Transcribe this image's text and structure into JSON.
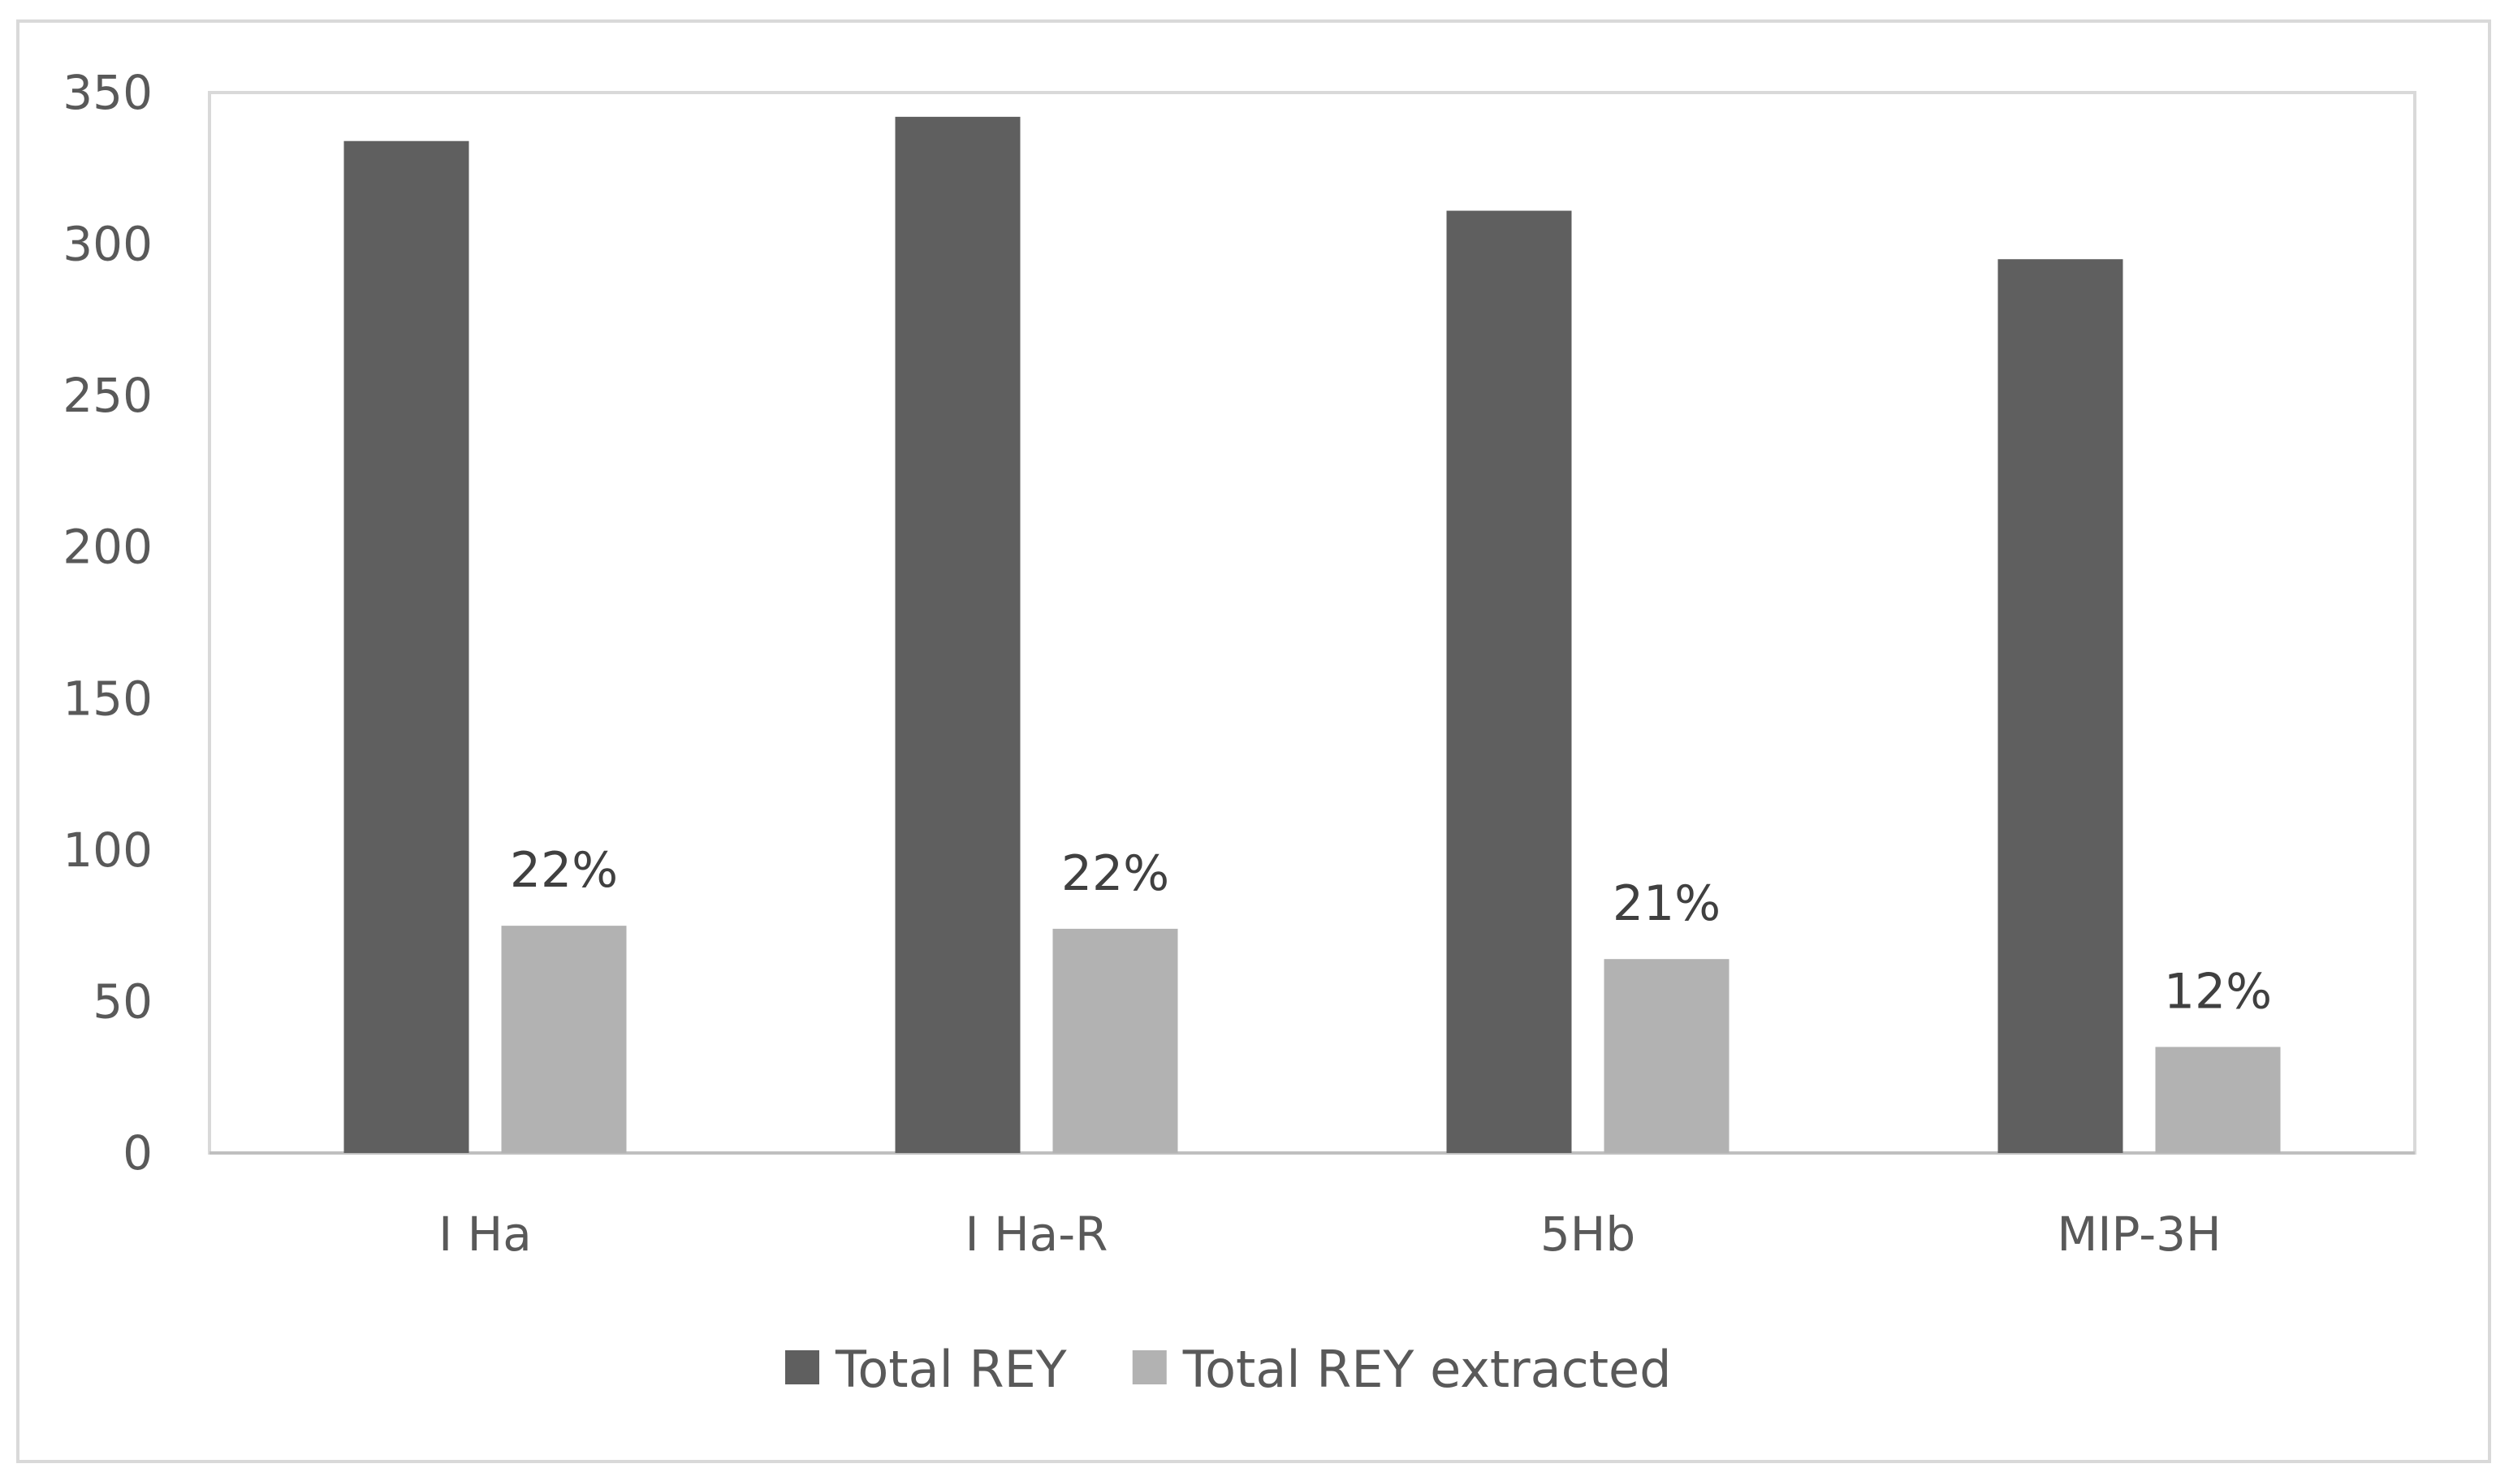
{
  "chart_data": {
    "type": "bar",
    "title": "",
    "xlabel": "",
    "ylabel": "",
    "categories": [
      "I Ha",
      "I Ha-R",
      "5Hb",
      "MIP-3H"
    ],
    "y_ticks": [
      "0",
      "50",
      "100",
      "150",
      "200",
      "250",
      "300",
      "350"
    ],
    "ylim": [
      0,
      350
    ],
    "grid": false,
    "legend_position": "bottom",
    "series": [
      {
        "name": "Total REY",
        "color": "#5f5f5f",
        "values": [
          334,
          342,
          311,
          295
        ],
        "labels": [
          "",
          "",
          "",
          ""
        ]
      },
      {
        "name": "Total REY extracted",
        "color": "#b2b2b2",
        "values": [
          75,
          74,
          64,
          35
        ],
        "labels": [
          "22%",
          "22%",
          "21%",
          "12%"
        ]
      }
    ]
  }
}
